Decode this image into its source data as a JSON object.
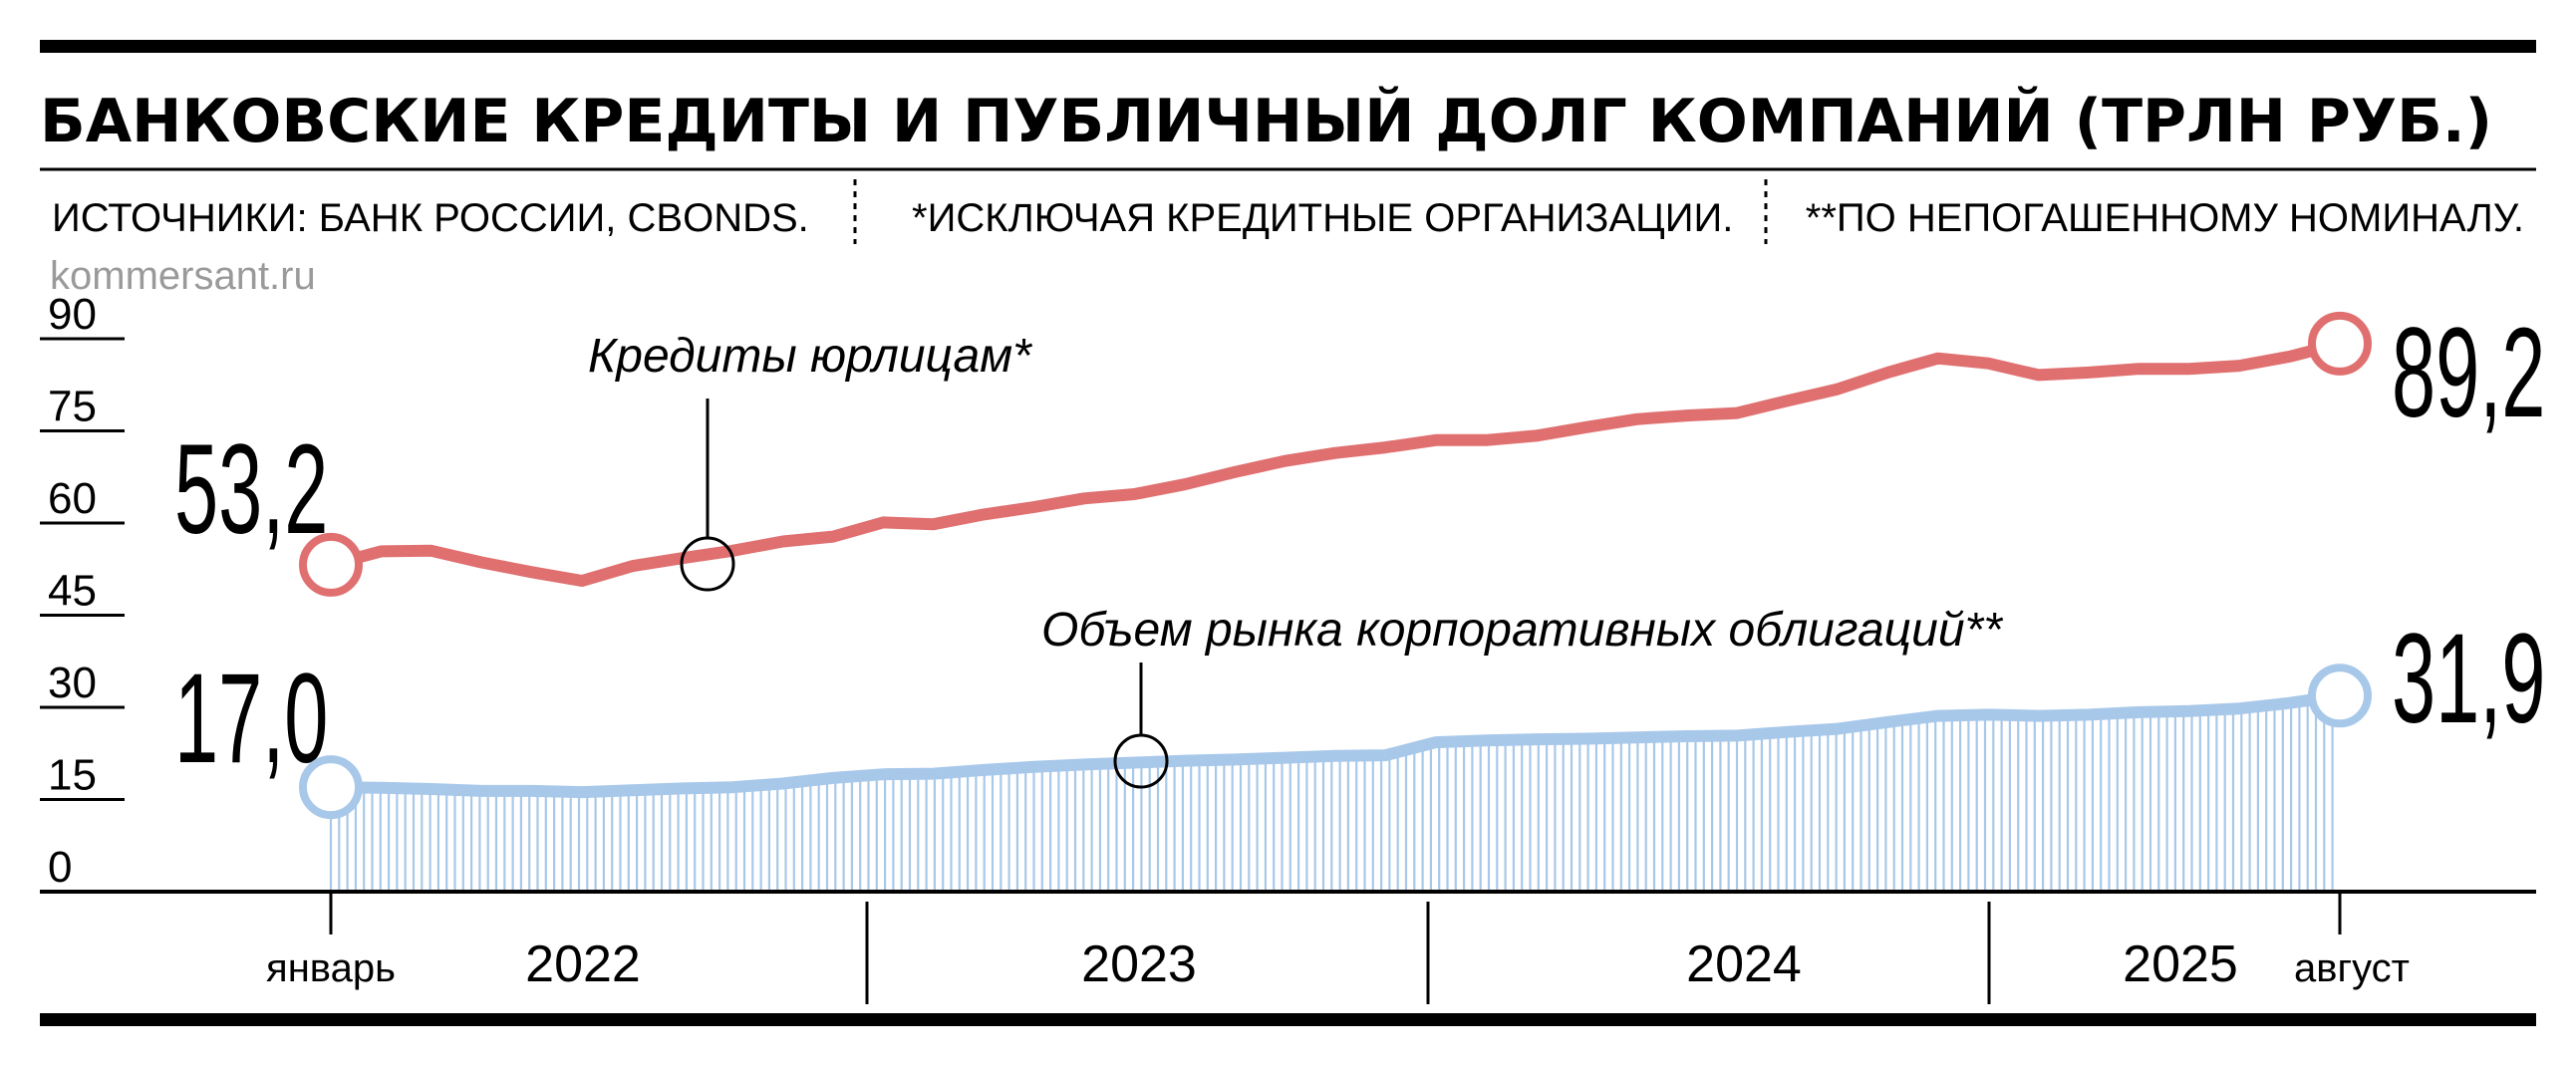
{
  "header": {
    "title": "БАНКОВСКИЕ КРЕДИТЫ И ПУБЛИЧНЫЙ ДОЛГ КОМПАНИЙ (ТРЛН РУБ.)",
    "source": "ИСТОЧНИКИ: БАНК РОССИИ, CBONDS.",
    "note1": "*ИСКЛЮЧАЯ КРЕДИТНЫЕ ОРГАНИЗАЦИИ.",
    "note2": "**ПО НЕПОГАШЕННОМУ НОМИНАЛУ.",
    "site": "kommersant.ru"
  },
  "chart_data": {
    "type": "line",
    "ylim": [
      0,
      90
    ],
    "yticks": [
      "0",
      "15",
      "30",
      "45",
      "60",
      "75",
      "90"
    ],
    "x_start_label": "январь",
    "x_end_label": "август",
    "years": [
      "2022",
      "2023",
      "2024",
      "2025"
    ],
    "series": [
      {
        "name": "Кредиты юрлицам*",
        "color": "#e07070",
        "start_label": "53,2",
        "end_label": "89,2",
        "values": [
          53.2,
          55.4,
          55.5,
          53.6,
          52.0,
          50.6,
          53.0,
          54.3,
          55.5,
          57.0,
          57.8,
          60.1,
          59.8,
          61.4,
          62.6,
          64.0,
          64.7,
          66.3,
          68.3,
          70.1,
          71.4,
          72.3,
          73.5,
          73.5,
          74.2,
          75.6,
          76.9,
          77.5,
          77.9,
          79.9,
          81.8,
          84.5,
          86.8,
          86.0,
          84.1,
          84.5,
          85.1,
          85.1,
          85.6,
          87.1,
          89.2
        ]
      },
      {
        "name": "Объем рынка корпоративных облигаций**",
        "color": "#a8c8ea",
        "start_label": "17,0",
        "end_label": "31,9",
        "values": [
          17.0,
          16.9,
          16.7,
          16.4,
          16.4,
          16.2,
          16.5,
          16.8,
          17.0,
          17.6,
          18.5,
          19.1,
          19.2,
          19.8,
          20.3,
          20.7,
          21.0,
          21.3,
          21.5,
          21.8,
          22.1,
          22.2,
          24.3,
          24.6,
          24.8,
          24.9,
          25.1,
          25.3,
          25.4,
          26.0,
          26.5,
          27.6,
          28.6,
          28.8,
          28.6,
          28.8,
          29.2,
          29.4,
          29.8,
          30.7,
          31.9
        ]
      }
    ]
  }
}
